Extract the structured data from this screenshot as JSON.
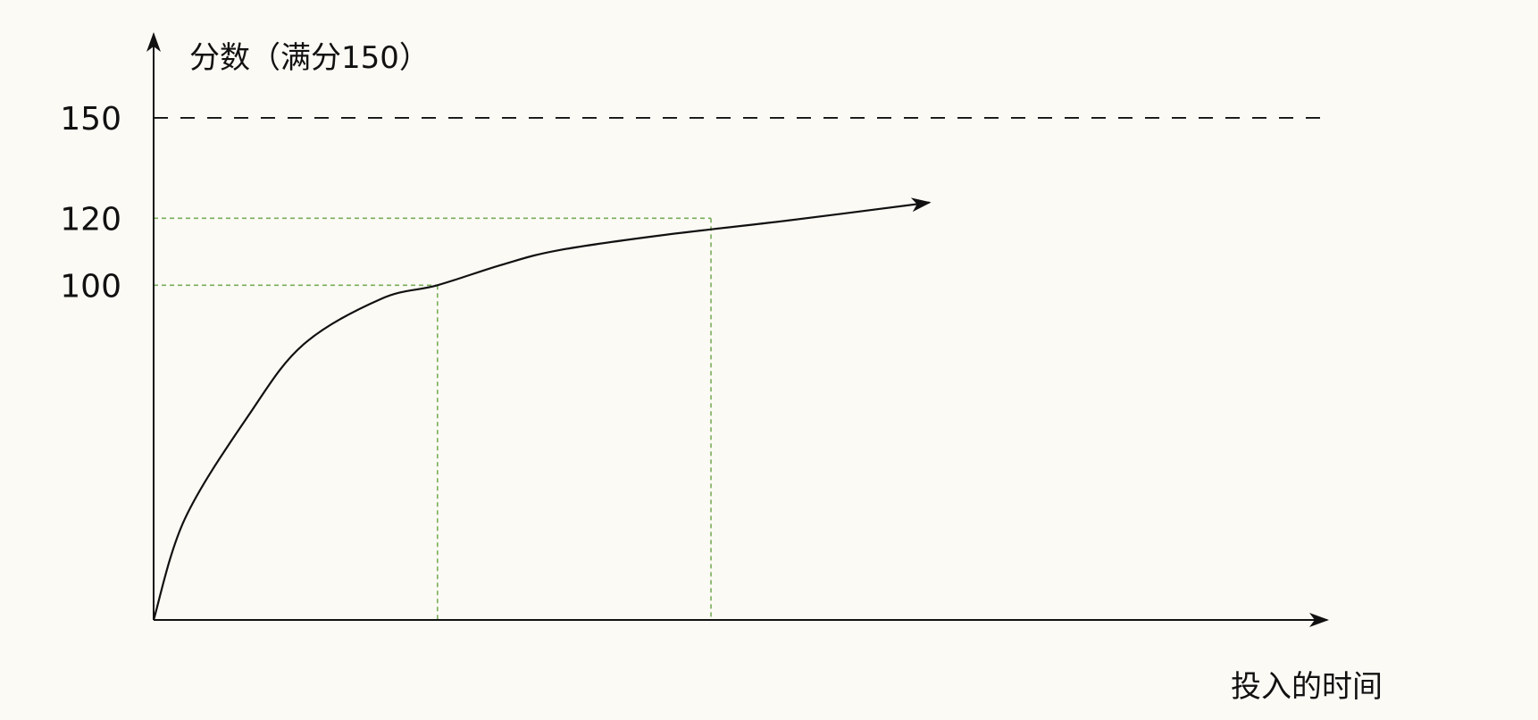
{
  "chart_data": {
    "type": "line",
    "ylabel": "分数（满分150）",
    "xlabel": "投入的时间",
    "yticks": [
      150,
      120,
      100
    ],
    "ylim": [
      0,
      150
    ],
    "series": [
      {
        "x": [
          0,
          0.57,
          1.75,
          2.75,
          4.17,
          5.21,
          6.39,
          7.42,
          9.31,
          11.62,
          14.24
        ],
        "values": [
          0,
          30.1,
          61.3,
          82.3,
          95.9,
          100,
          106.1,
          110.4,
          114.9,
          119.3,
          124.7
        ]
      }
    ],
    "max_line": {
      "value": 150
    },
    "guides": [
      {
        "x": 5.21,
        "y": 100
      },
      {
        "x": 10.23,
        "y": 120
      }
    ],
    "grid": false,
    "colors": {
      "curve": "#111111",
      "axis": "#111111",
      "guide": "#79ad5a",
      "background": "#fcfaf5"
    }
  }
}
